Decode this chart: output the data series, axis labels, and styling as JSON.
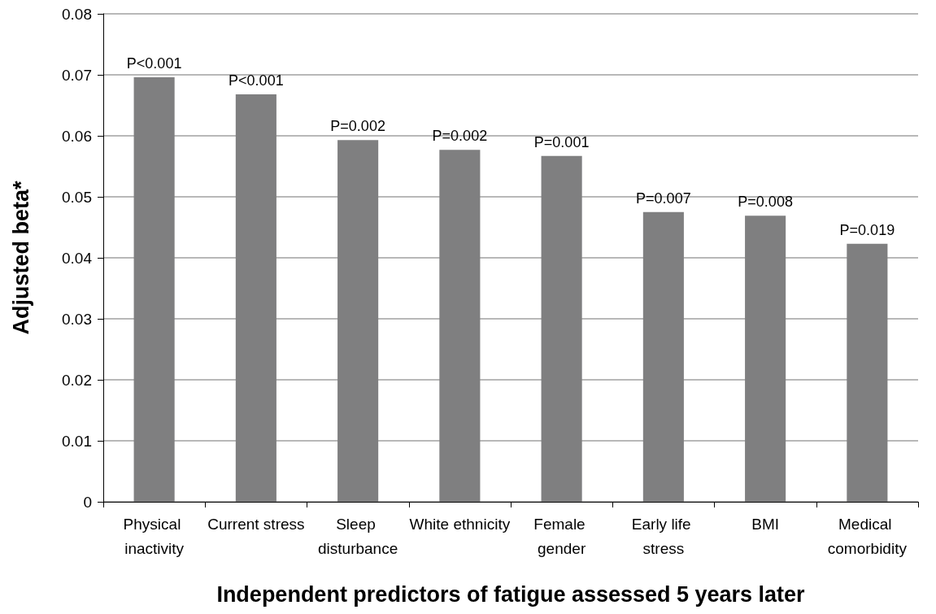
{
  "chart_data": {
    "type": "bar",
    "xlabel": "Independent predictors of fatigue assessed 5 years later",
    "ylabel": "Adjusted beta*",
    "categories": [
      "Physical inactivity",
      "Current stress",
      "Sleep disturbance",
      "White ethnicity",
      "Female gender",
      "Early life stress",
      "BMI",
      "Medical comorbidity"
    ],
    "values": [
      0.0696,
      0.0668,
      0.0593,
      0.0577,
      0.0567,
      0.0475,
      0.0469,
      0.0423
    ],
    "color": "#7f7f80",
    "ylim": [
      0,
      0.08
    ],
    "yticks": [
      0,
      0.01,
      0.02,
      0.03,
      0.04,
      0.05,
      0.06,
      0.07,
      0.08
    ],
    "grid": "y",
    "annotations": [
      {
        "text": "P<0.001",
        "x": "Physical inactivity",
        "y": 0.0696
      },
      {
        "text": "P<0.001",
        "x": "Current stress",
        "y": 0.0668
      },
      {
        "text": "P=0.002",
        "x": "Sleep disturbance",
        "y": 0.0593
      },
      {
        "text": "P=0.002",
        "x": "White ethnicity",
        "y": 0.0577
      },
      {
        "text": "P=0.001",
        "x": "Female gender",
        "y": 0.0567
      },
      {
        "text": "P=0.007",
        "x": "Early life stress",
        "y": 0.0475
      },
      {
        "text": "P=0.008",
        "x": "BMI",
        "y": 0.0469
      },
      {
        "text": "P=0.019",
        "x": "Medical comorbidity",
        "y": 0.0423
      }
    ]
  }
}
